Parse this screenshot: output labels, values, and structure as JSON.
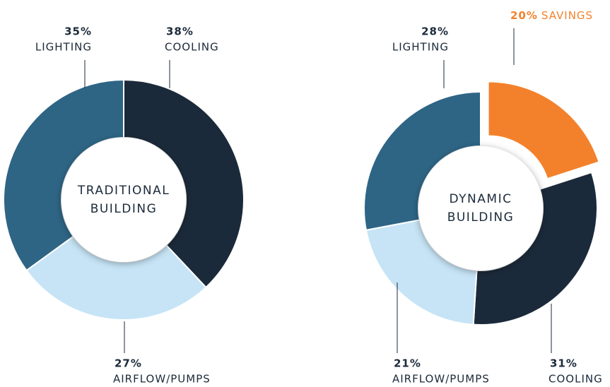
{
  "chart_data": [
    {
      "type": "pie",
      "donut": true,
      "center_label": [
        "TRADITIONAL",
        "BUILDING"
      ],
      "categories": [
        "COOLING",
        "AIRFLOW/PUMPS",
        "LIGHTING"
      ],
      "values": [
        38,
        27,
        35
      ],
      "value_labels": [
        "38%",
        "27%",
        "35%"
      ],
      "colors": [
        "#1b2a3a",
        "#c6e4f6",
        "#2e6585"
      ],
      "explode": [
        false,
        false,
        false
      ]
    },
    {
      "type": "pie",
      "donut": true,
      "center_label": [
        "DYNAMIC",
        "BUILDING"
      ],
      "categories": [
        "SAVINGS",
        "COOLING",
        "AIRFLOW/PUMPS",
        "LIGHTING"
      ],
      "values": [
        20,
        31,
        21,
        28
      ],
      "value_labels": [
        "20%",
        "31%",
        "21%",
        "28%"
      ],
      "colors": [
        "#f3812b",
        "#1b2a3a",
        "#c6e4f6",
        "#2e6585"
      ],
      "explode": [
        true,
        false,
        false,
        false
      ]
    }
  ]
}
